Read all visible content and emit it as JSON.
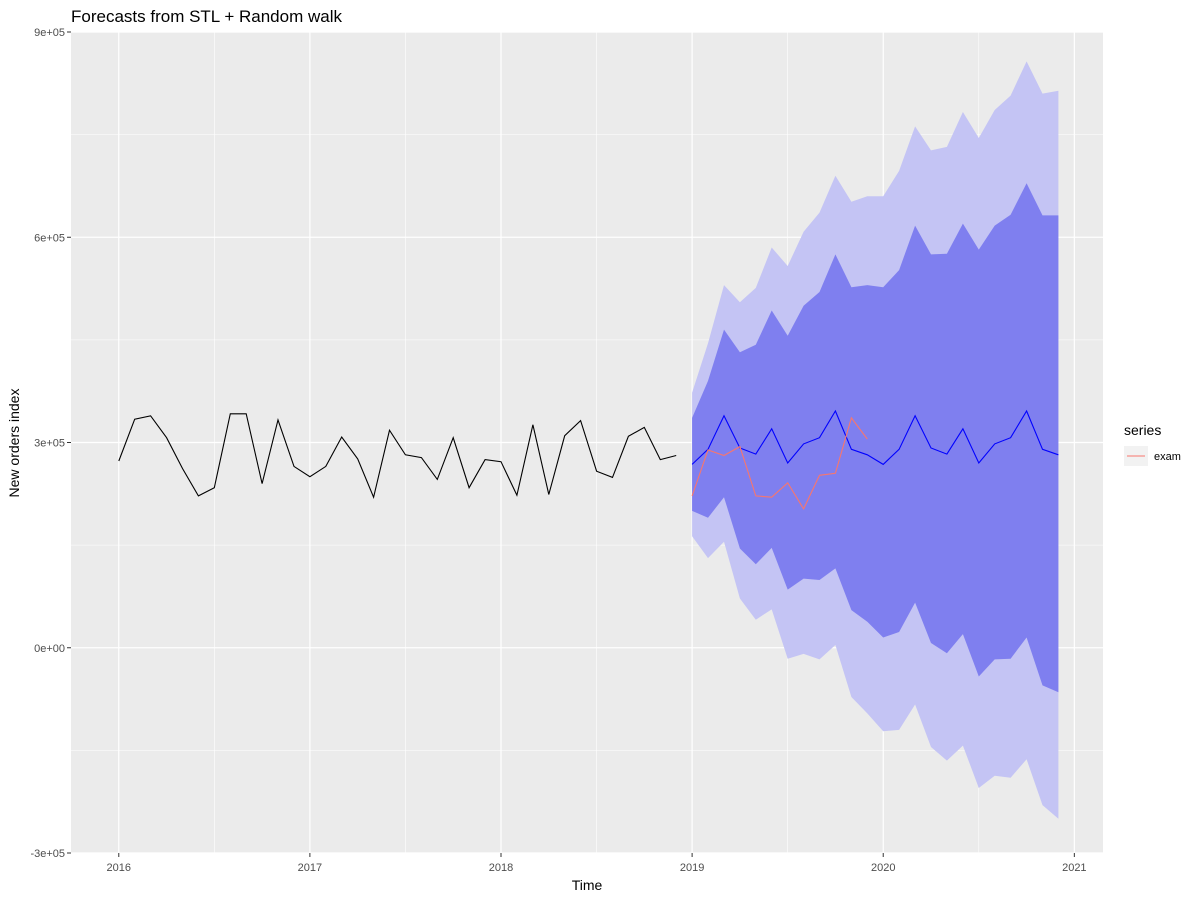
{
  "chart_data": {
    "type": "line",
    "title": "Forecasts from STL +  Random walk",
    "xlabel": "Time",
    "ylabel": "New orders index",
    "xlim": [
      2015.75,
      2021.15
    ],
    "ylim": [
      -300000,
      900000
    ],
    "x_ticks": [
      2016,
      2017,
      2018,
      2019,
      2020,
      2021
    ],
    "x_tick_labels": [
      "2016",
      "2017",
      "2018",
      "2019",
      "2020",
      "2021"
    ],
    "y_ticks": [
      -300000,
      0,
      300000,
      600000,
      900000
    ],
    "y_tick_labels": [
      "-3e+05",
      "0e+00",
      "3e+05",
      "6e+05",
      "9e+05"
    ],
    "grid": true,
    "legend": {
      "title": "series",
      "position": "right"
    },
    "colors": {
      "panel_bg": "#ebebeb",
      "grid": "#ffffff",
      "history": "#000000",
      "forecast": "#0000ff",
      "pi80": "#7f7fef",
      "pi95": "#c4c4f4",
      "exam": "#f8766d"
    },
    "history": {
      "start": 2016,
      "frequency": 12,
      "values": [
        273000,
        334000,
        339000,
        307000,
        262000,
        222000,
        234000,
        342000,
        342000,
        240000,
        333000,
        265000,
        250000,
        265000,
        308000,
        276000,
        220000,
        318000,
        282000,
        278000,
        246000,
        307000,
        234000,
        275000,
        272000,
        223000,
        326000,
        224000,
        310000,
        332000,
        258000,
        249000,
        309000,
        322000,
        275000,
        281000
      ]
    },
    "forecast": {
      "start": 2019,
      "frequency": 12,
      "mean": [
        268000,
        290000,
        339000,
        292000,
        283000,
        320000,
        270000,
        298000,
        307000,
        346000,
        290000,
        282000,
        268000,
        290000,
        339000,
        292000,
        283000,
        320000,
        270000,
        298000,
        307000,
        346000,
        290000,
        282000
      ],
      "lo80": [
        200000,
        190000,
        220000,
        145000,
        122000,
        146000,
        85000,
        101000,
        99000,
        116000,
        55000,
        38000,
        15000,
        23000,
        66000,
        7000,
        -8000,
        20000,
        -42000,
        -17000,
        -16000,
        15000,
        -55000,
        -65000
      ],
      "hi80": [
        336000,
        390000,
        465000,
        432000,
        443000,
        493000,
        456000,
        500000,
        520000,
        575000,
        527000,
        530000,
        527000,
        552000,
        617000,
        575000,
        576000,
        620000,
        582000,
        617000,
        633000,
        679000,
        632000,
        632000
      ],
      "lo95": [
        163000,
        131000,
        155000,
        72000,
        41000,
        56000,
        -16000,
        -9000,
        -17000,
        4000,
        -72000,
        -96000,
        -122000,
        -120000,
        -83000,
        -145000,
        -165000,
        -143000,
        -205000,
        -187000,
        -190000,
        -163000,
        -230000,
        -250000
      ],
      "hi95": [
        373000,
        445000,
        530000,
        505000,
        526000,
        585000,
        558000,
        608000,
        636000,
        690000,
        652000,
        660000,
        660000,
        697000,
        762000,
        727000,
        732000,
        783000,
        745000,
        786000,
        807000,
        857000,
        810000,
        814000
      ]
    },
    "series": [
      {
        "name": "exam",
        "start": 2019,
        "frequency": 12,
        "values": [
          222000,
          289000,
          281000,
          294000,
          222000,
          220000,
          241000,
          203000,
          252000,
          255000,
          336000,
          305000
        ]
      }
    ]
  }
}
